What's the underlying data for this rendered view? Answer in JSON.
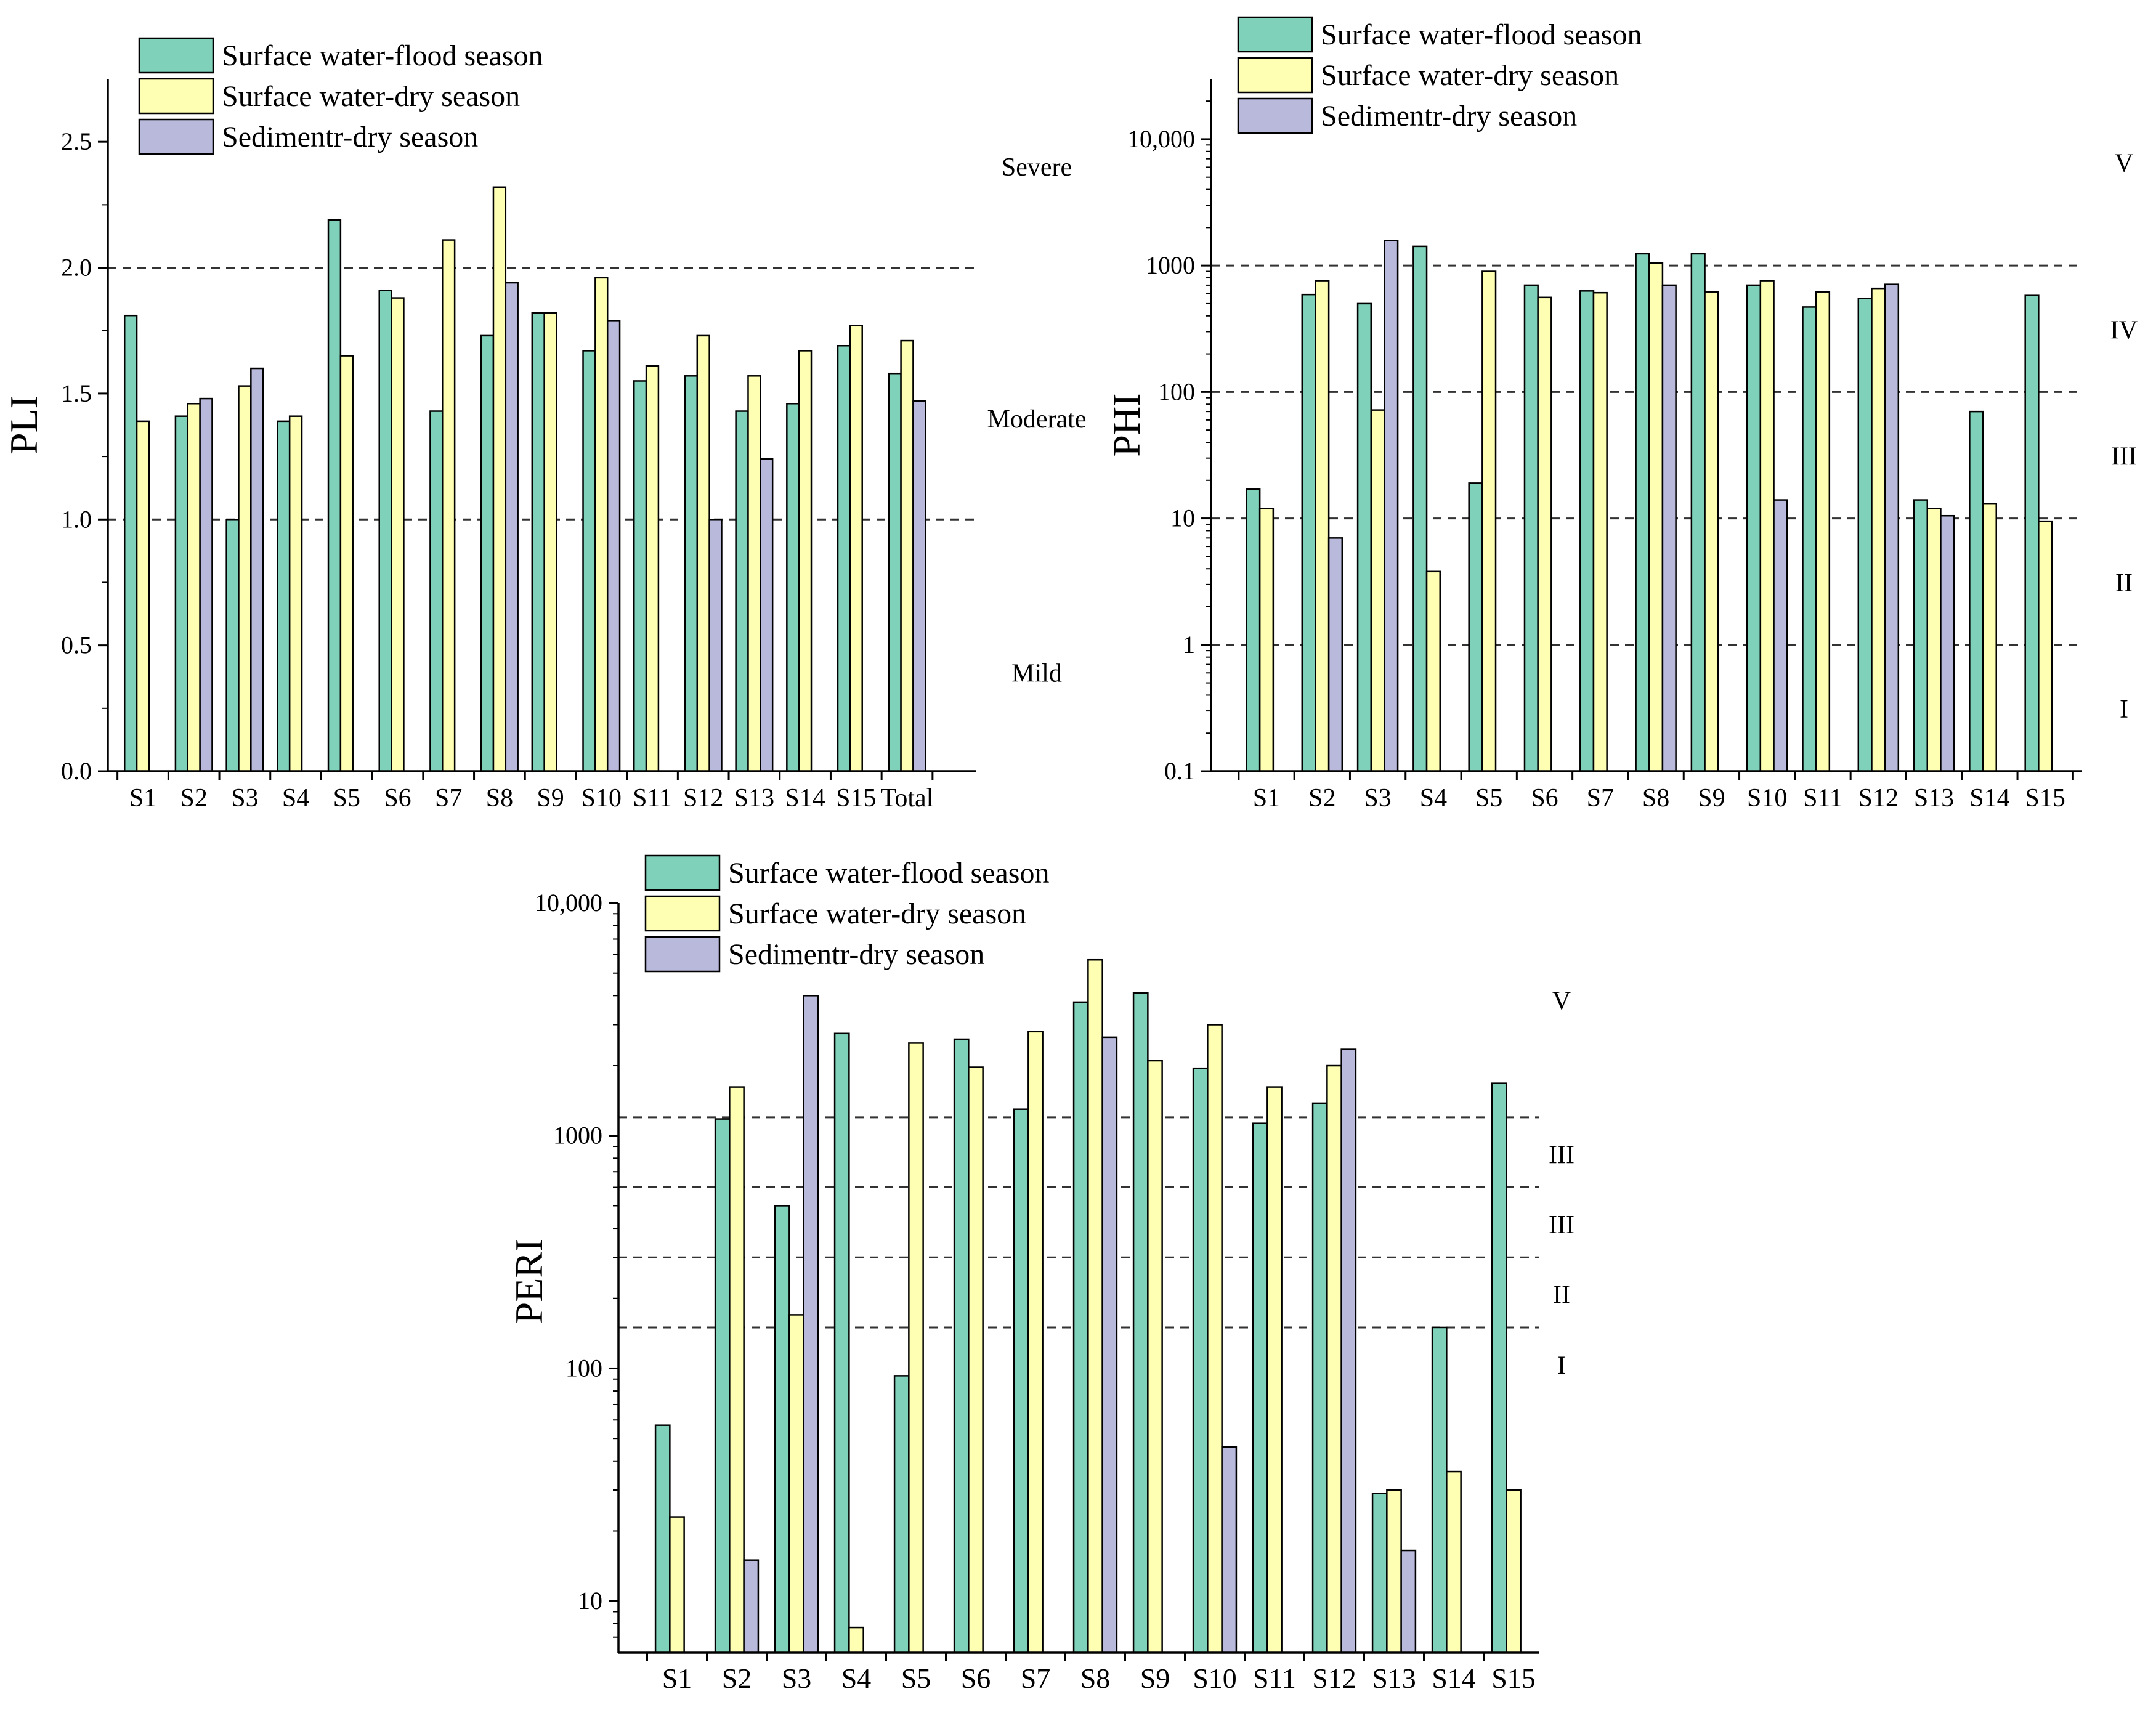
{
  "series_colors": {
    "flood": "#7fd1b9",
    "dry": "#ffffb3",
    "sed": "#b9b9dc"
  },
  "legend_labels": [
    "Surface water-flood season",
    "Surface water-dry season",
    "Sedimentr-dry season"
  ],
  "chart_data": [
    {
      "id": "pli",
      "type": "bar",
      "scale": "linear",
      "ylabel": "PLI",
      "ylim": [
        0,
        2.75
      ],
      "yticks": [
        0,
        0.5,
        1.0,
        1.5,
        2.0,
        2.5
      ],
      "ytick_labels": [
        "0.0",
        "0.5",
        "1.0",
        "1.5",
        "2.0",
        "2.5"
      ],
      "categories": [
        "S1",
        "S2",
        "S3",
        "S4",
        "S5",
        "S6",
        "S7",
        "S8",
        "S9",
        "S10",
        "S11",
        "S12",
        "S13",
        "S14",
        "S15",
        "Total"
      ],
      "series": [
        {
          "name": "Surface water-flood season",
          "key": "flood",
          "values": [
            1.81,
            1.41,
            1.0,
            1.39,
            2.19,
            1.91,
            1.43,
            1.73,
            1.82,
            1.67,
            1.55,
            1.57,
            1.43,
            1.46,
            1.69,
            1.58
          ]
        },
        {
          "name": "Surface water-dry season",
          "key": "dry",
          "values": [
            1.39,
            1.46,
            1.53,
            1.41,
            1.65,
            1.88,
            2.11,
            2.32,
            1.82,
            1.96,
            1.61,
            1.73,
            1.57,
            1.67,
            1.77,
            1.71
          ]
        },
        {
          "name": "Sedimentr-dry season",
          "key": "sed",
          "values": [
            null,
            1.48,
            1.6,
            null,
            null,
            null,
            null,
            1.94,
            null,
            1.79,
            null,
            1.0,
            1.24,
            null,
            null,
            1.47
          ]
        }
      ],
      "reference_lines": [
        1.0,
        2.0
      ],
      "zone_labels": [
        {
          "text": "Severe",
          "y": 2.4
        },
        {
          "text": "Moderate",
          "y": 1.4
        },
        {
          "text": "Mild",
          "y": 0.39
        }
      ]
    },
    {
      "id": "phi",
      "type": "bar",
      "scale": "log",
      "ylabel": "PHI",
      "ylim": [
        0.1,
        30000
      ],
      "yticks": [
        0.1,
        1,
        10,
        100,
        1000,
        10000
      ],
      "ytick_labels": [
        "0.1",
        "1",
        "10",
        "100",
        "1000",
        "10,000"
      ],
      "categories": [
        "S1",
        "S2",
        "S3",
        "S4",
        "S5",
        "S6",
        "S7",
        "S8",
        "S9",
        "S10",
        "S11",
        "S12",
        "S13",
        "S14",
        "S15"
      ],
      "series": [
        {
          "name": "Surface water-flood season",
          "key": "flood",
          "values": [
            17,
            590,
            500,
            1420,
            19,
            700,
            630,
            1240,
            1240,
            700,
            470,
            550,
            14,
            70,
            580
          ]
        },
        {
          "name": "Surface water-dry season",
          "key": "dry",
          "values": [
            12,
            760,
            72,
            3.8,
            900,
            560,
            610,
            1050,
            620,
            760,
            620,
            660,
            12,
            13,
            9.5
          ]
        },
        {
          "name": "Sedimentr-dry season",
          "key": "sed",
          "values": [
            null,
            7,
            1580,
            null,
            null,
            null,
            null,
            700,
            null,
            14,
            null,
            710,
            10.5,
            null,
            null
          ]
        }
      ],
      "reference_lines": [
        1,
        10,
        100,
        1000
      ],
      "zone_labels": [
        {
          "text": "V",
          "y": 6500
        },
        {
          "text": "IV",
          "y": 310
        },
        {
          "text": "III",
          "y": 31
        },
        {
          "text": "II",
          "y": 3.1
        },
        {
          "text": "I",
          "y": 0.31
        }
      ]
    },
    {
      "id": "peri",
      "type": "bar",
      "scale": "log",
      "ylabel": "PERI",
      "ylim": [
        6,
        10000
      ],
      "yticks": [
        10,
        100,
        1000,
        10000
      ],
      "ytick_labels": [
        "10",
        "100",
        "1000",
        "10,000"
      ],
      "categories": [
        "S1",
        "S2",
        "S3",
        "S4",
        "S5",
        "S6",
        "S7",
        "S8",
        "S9",
        "S10",
        "S11",
        "S12",
        "S13",
        "S14",
        "S15"
      ],
      "series": [
        {
          "name": "Surface water-flood season",
          "key": "flood",
          "values": [
            57,
            1180,
            500,
            2750,
            93,
            2600,
            1300,
            3750,
            4100,
            1950,
            1130,
            1380,
            29,
            150,
            1680
          ]
        },
        {
          "name": "Surface water-dry season",
          "key": "dry",
          "values": [
            23,
            1620,
            170,
            7.7,
            2500,
            1970,
            2800,
            5700,
            2100,
            3000,
            1620,
            2000,
            30,
            36,
            30
          ]
        },
        {
          "name": "Sedimentr-dry season",
          "key": "sed",
          "values": [
            null,
            15,
            4000,
            null,
            null,
            null,
            null,
            2650,
            null,
            46,
            null,
            2350,
            16.5,
            null,
            null
          ]
        }
      ],
      "reference_lines": [
        150,
        300,
        600,
        1200
      ],
      "zone_labels": [
        {
          "text": "V",
          "y": 3800
        },
        {
          "text": "III",
          "y": 830
        },
        {
          "text": "III",
          "y": 415
        },
        {
          "text": "II",
          "y": 208
        },
        {
          "text": "I",
          "y": 103
        }
      ]
    }
  ]
}
